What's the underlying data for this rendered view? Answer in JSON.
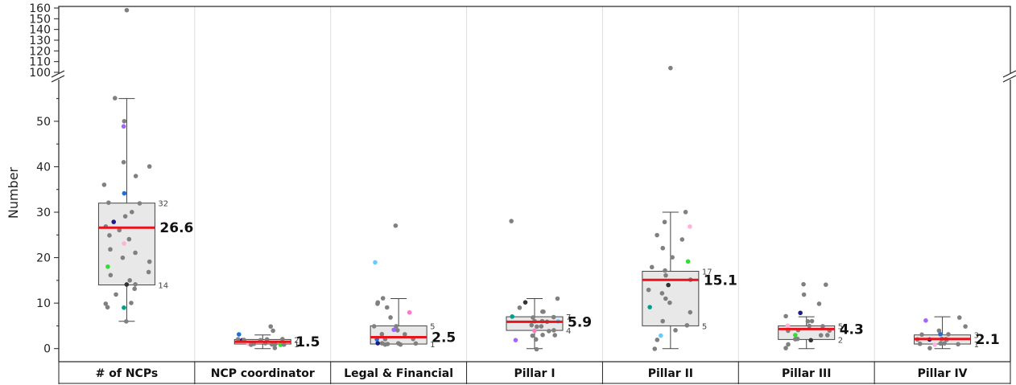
{
  "chart_data": {
    "type": "box",
    "ylabel": "Number",
    "y_break": [
      60,
      100
    ],
    "ylim_lower": [
      -2,
      59
    ],
    "ylim_upper": [
      100,
      160
    ],
    "yticks_lower": [
      "0",
      "10",
      "20",
      "30",
      "40",
      "50"
    ],
    "yticks_upper": [
      "100",
      "110",
      "120",
      "130",
      "140",
      "150",
      "160"
    ],
    "grid": false,
    "categories": [
      "# of NCPs",
      "NCP coordinator",
      "Legal & Financial",
      "Pillar I",
      "Pillar II",
      "Pillar III",
      "Pillar IV"
    ],
    "boxes": [
      {
        "category": "# of NCPs",
        "q1": 14,
        "q3": 32,
        "q1_label": "14",
        "q3_label": "32",
        "mean": 26.6,
        "mean_label": "26.6",
        "whisker_low": 6,
        "whisker_high": 55,
        "outliers": [
          158
        ],
        "points": [
          6,
          9,
          9,
          10,
          10,
          12,
          13,
          14,
          14,
          15,
          16,
          17,
          18,
          19,
          20,
          21,
          22,
          23,
          24,
          25,
          26,
          27,
          28,
          29,
          30,
          32,
          32,
          34,
          36,
          38,
          40,
          41,
          49,
          50,
          55
        ]
      },
      {
        "category": "NCP coordinator",
        "q1": 1,
        "q3": 2,
        "q1_label": "1",
        "q3_label": "2",
        "mean": 1.5,
        "mean_label": "1.5",
        "whisker_low": 0,
        "whisker_high": 3,
        "outliers": [],
        "points": [
          0,
          1,
          1,
          1,
          1,
          1,
          1,
          1,
          1,
          1,
          2,
          2,
          2,
          2,
          2,
          2,
          2,
          3,
          4,
          5
        ]
      },
      {
        "category": "Legal & Financial",
        "q1": 1,
        "q3": 5,
        "q1_label": "1",
        "q3_label": "5",
        "mean": 2.5,
        "mean_label": "2.5",
        "whisker_low": 1,
        "whisker_high": 11,
        "outliers": [],
        "points": [
          1,
          1,
          1,
          1,
          1,
          1,
          1,
          2,
          2,
          2,
          3,
          3,
          4,
          4,
          5,
          5,
          7,
          8,
          9,
          10,
          10,
          11,
          19,
          27
        ]
      },
      {
        "category": "Pillar I",
        "q1": 4,
        "q3": 7,
        "q1_label": "4",
        "q3_label": "7",
        "mean": 5.9,
        "mean_label": "5.9",
        "whisker_low": 0,
        "whisker_high": 11,
        "outliers": [],
        "points": [
          0,
          2,
          2,
          3,
          3,
          3,
          4,
          4,
          4,
          5,
          5,
          5,
          6,
          6,
          6,
          6,
          7,
          7,
          7,
          8,
          8,
          9,
          10,
          11,
          28
        ]
      },
      {
        "category": "Pillar II",
        "q1": 5,
        "q3": 17,
        "q1_label": "5",
        "q3_label": "17",
        "mean": 15.1,
        "mean_label": "15.1",
        "whisker_low": 0,
        "whisker_high": 30,
        "outliers": [
          104
        ],
        "points": [
          0,
          2,
          3,
          4,
          5,
          6,
          8,
          9,
          10,
          11,
          12,
          13,
          14,
          15,
          16,
          17,
          18,
          19,
          20,
          22,
          24,
          25,
          27,
          28,
          30
        ]
      },
      {
        "category": "Pillar III",
        "q1": 2,
        "q3": 5,
        "q1_label": "2",
        "q3_label": "5",
        "mean": 4.3,
        "mean_label": "4.3",
        "whisker_low": 0,
        "whisker_high": 7,
        "outliers": [],
        "points": [
          0,
          1,
          2,
          2,
          2,
          3,
          3,
          3,
          4,
          4,
          4,
          5,
          5,
          5,
          6,
          6,
          7,
          8,
          10,
          12,
          14,
          14
        ]
      },
      {
        "category": "Pillar IV",
        "q1": 1,
        "q3": 3,
        "q1_label": "1",
        "q3_label": "3",
        "mean": 2.1,
        "mean_label": "2.1",
        "whisker_low": 0,
        "whisker_high": 7,
        "outliers": [],
        "points": [
          0,
          1,
          1,
          1,
          1,
          1,
          2,
          2,
          2,
          2,
          2,
          2,
          3,
          3,
          3,
          4,
          5,
          6,
          7
        ]
      }
    ]
  },
  "colors": {
    "box_fill": "#e8e8e8",
    "box_stroke": "#444444",
    "mean_line": "#e8141c",
    "point": "#808080",
    "highlight_points": [
      "#1f6fd6",
      "#ff79c6",
      "#00a08a",
      "#33dd33",
      "#1b1b8a",
      "#a066ff",
      "#66ccff",
      "#333333",
      "#ffb3d9"
    ]
  }
}
